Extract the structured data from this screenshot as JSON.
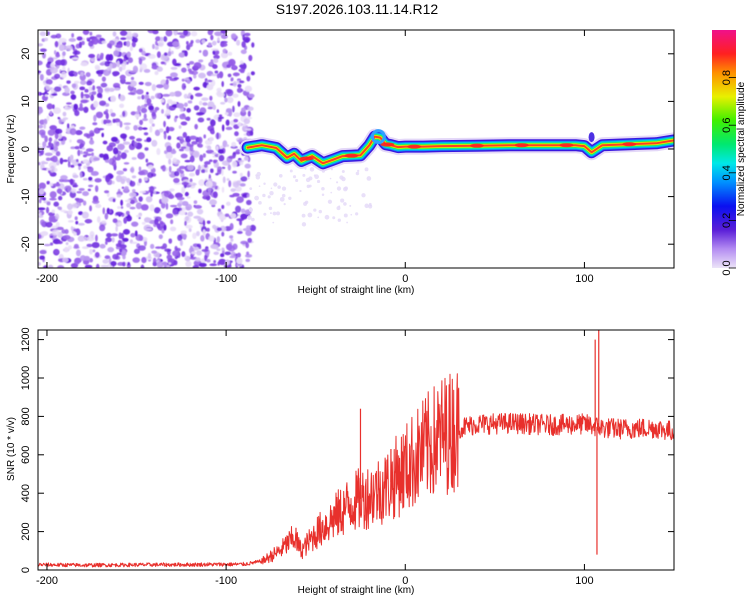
{
  "title": "S197.2026.103.11.14.R12",
  "chart_data": [
    {
      "type": "heatmap",
      "name": "spectrogram",
      "xlabel": "Height of straight line (km)",
      "ylabel": "Frequency (Hz)",
      "xlim": [
        -205,
        150
      ],
      "ylim": [
        -25,
        25
      ],
      "xticks": [
        -200,
        -100,
        0,
        100
      ],
      "yticks": [
        -20,
        -10,
        0,
        10,
        20
      ],
      "colorbar": {
        "label": "Normalized spectral amplitude",
        "range": [
          0.0,
          1.0
        ],
        "ticks": [
          0.0,
          0.2,
          0.4,
          0.6,
          0.8
        ]
      },
      "ridge": {
        "x": [
          -88,
          -80,
          -72,
          -66,
          -62,
          -58,
          -52,
          -46,
          -40,
          -35,
          -30,
          -25,
          -20,
          -17,
          -14,
          -11,
          -8,
          -4,
          0,
          10,
          20,
          40,
          60,
          80,
          95,
          100,
          104,
          110,
          125,
          140,
          150
        ],
        "y": [
          0.3,
          0.8,
          0.2,
          -1.8,
          -1.0,
          -2.5,
          -1.5,
          -3.0,
          -2.2,
          -1.5,
          -1.4,
          -1.3,
          0.8,
          2.6,
          2.4,
          1.0,
          0.8,
          0.4,
          0.5,
          0.5,
          0.6,
          0.7,
          0.8,
          0.8,
          0.8,
          0.6,
          -0.7,
          0.8,
          1.0,
          1.2,
          1.8
        ]
      },
      "noise_region_x": [
        -205,
        -88
      ]
    },
    {
      "type": "line",
      "name": "snr",
      "xlabel": "Height of straight line (km)",
      "ylabel": "SNR (10 * v/v)",
      "xlim": [
        -205,
        150
      ],
      "ylim": [
        0,
        1250
      ],
      "xticks": [
        -200,
        -100,
        0,
        100
      ],
      "yticks": [
        0,
        200,
        400,
        600,
        800,
        1000,
        1200
      ],
      "series": [
        {
          "name": "SNR",
          "color": "#e8302c",
          "x": [
            -205,
            -180,
            -150,
            -120,
            -90,
            -80,
            -70,
            -62,
            -58,
            -50,
            -40,
            -30,
            -20,
            -10,
            0,
            10,
            20,
            30,
            40,
            60,
            80,
            100,
            105,
            110,
            120,
            140,
            150
          ],
          "y": [
            28,
            25,
            27,
            28,
            30,
            45,
            100,
            170,
            100,
            190,
            270,
            350,
            390,
            440,
            530,
            620,
            700,
            740,
            760,
            765,
            755,
            760,
            750,
            740,
            735,
            740,
            720
          ]
        }
      ],
      "spikes": [
        {
          "x": -61,
          "y": 220
        },
        {
          "x": -25,
          "y": 840
        },
        {
          "x": -8,
          "y": 630
        },
        {
          "x": 106,
          "y": 1200
        },
        {
          "x": 107,
          "y": 80
        },
        {
          "x": 108,
          "y": 1250
        }
      ]
    }
  ]
}
